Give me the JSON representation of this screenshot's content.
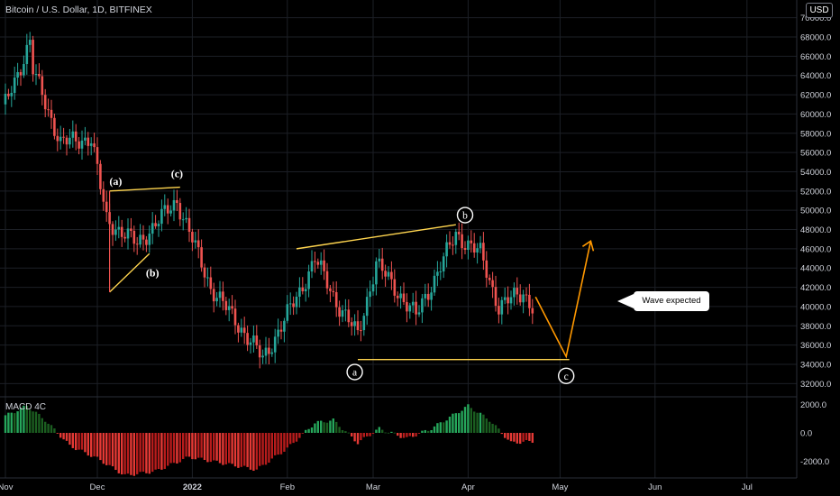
{
  "header": {
    "title": "Bitcoin / U.S. Dollar, 1D, BITFINEX"
  },
  "currency_button": "USD",
  "macd_label": "MACD 4C",
  "callout_text": "Wave expected",
  "colors": {
    "up": "#26a69a",
    "down": "#ef5350",
    "bull": "#4caf50",
    "bear": "#e53935",
    "wave_line": "#ffd54f",
    "projection": "#ff9800",
    "grid": "#1c1f26"
  },
  "chart_data": [
    {
      "type": "candlestick",
      "title": "Bitcoin / U.S. Dollar, 1D, BITFINEX",
      "x_ticks": [
        "Nov",
        "Dec",
        "2022",
        "Feb",
        "Mar",
        "Apr",
        "May",
        "Jun",
        "Jul"
      ],
      "y_ticks": [
        "70000.0",
        "68000.0",
        "66000.0",
        "64000.0",
        "62000.0",
        "60000.0",
        "58000.0",
        "56000.0",
        "54000.0",
        "52000.0",
        "50000.0",
        "48000.0",
        "46000.0",
        "44000.0",
        "42000.0",
        "40000.0",
        "38000.0",
        "36000.0",
        "34000.0",
        "32000.0"
      ],
      "ylim": [
        31000,
        71000
      ],
      "price_path": [
        {
          "date": "2021-11-01",
          "close": 61000
        },
        {
          "date": "2021-11-09",
          "close": 67500
        },
        {
          "date": "2021-11-10",
          "close": 64500
        },
        {
          "date": "2021-11-19",
          "close": 57000
        },
        {
          "date": "2021-11-29",
          "close": 57500
        },
        {
          "date": "2021-12-04",
          "close": 49000
        },
        {
          "date": "2021-12-14",
          "close": 46500
        },
        {
          "date": "2021-12-27",
          "close": 51000
        },
        {
          "date": "2022-01-07",
          "close": 42000
        },
        {
          "date": "2022-01-21",
          "close": 36000
        },
        {
          "date": "2022-01-24",
          "close": 34500
        },
        {
          "date": "2022-02-05",
          "close": 41500
        },
        {
          "date": "2022-02-10",
          "close": 45000
        },
        {
          "date": "2022-02-17",
          "close": 40500
        },
        {
          "date": "2022-02-24",
          "close": 37000
        },
        {
          "date": "2022-03-02",
          "close": 44500
        },
        {
          "date": "2022-03-15",
          "close": 39000
        },
        {
          "date": "2022-03-28",
          "close": 47500
        },
        {
          "date": "2022-04-05",
          "close": 45500
        },
        {
          "date": "2022-04-11",
          "close": 40000
        },
        {
          "date": "2022-04-19",
          "close": 41500
        },
        {
          "date": "2022-04-22",
          "close": 40000
        }
      ],
      "wave_labels": [
        {
          "text": "(a)",
          "date": "2021-12-07",
          "price": 53000
        },
        {
          "text": "(b)",
          "date": "2021-12-19",
          "price": 43500
        },
        {
          "text": "(c)",
          "date": "2021-12-27",
          "price": 53800
        },
        {
          "text": "b",
          "date": "2022-03-31",
          "price": 49500
        },
        {
          "text": "a",
          "date": "2022-02-23",
          "price": 33200
        },
        {
          "text": "c",
          "date": "2022-05-03",
          "price": 32800
        }
      ],
      "trendlines": [
        {
          "from": {
            "date": "2021-12-05",
            "price": 52000
          },
          "to": {
            "date": "2021-12-28",
            "price": 52400
          }
        },
        {
          "from": {
            "date": "2021-12-05",
            "price": 41500
          },
          "to": {
            "date": "2021-12-18",
            "price": 45500
          }
        },
        {
          "from": {
            "date": "2022-02-04",
            "price": 46000
          },
          "to": {
            "date": "2022-03-28",
            "price": 48500
          }
        },
        {
          "from": {
            "date": "2022-02-24",
            "price": 34500
          },
          "to": {
            "date": "2022-05-04",
            "price": 34500
          }
        }
      ],
      "projection": [
        {
          "date": "2022-04-23",
          "price": 41000
        },
        {
          "date": "2022-05-03",
          "price": 34800
        },
        {
          "date": "2022-05-11",
          "price": 46800
        }
      ]
    },
    {
      "type": "histogram",
      "title": "MACD 4C",
      "y_ticks": [
        "2000.0",
        "0.0",
        "-2000.0"
      ],
      "ylim": [
        -3000,
        2800
      ],
      "path": [
        {
          "date": "2021-11-01",
          "value": 1200
        },
        {
          "date": "2021-11-08",
          "value": 1900
        },
        {
          "date": "2021-11-14",
          "value": 900
        },
        {
          "date": "2021-11-22",
          "value": -900
        },
        {
          "date": "2021-12-01",
          "value": -1800
        },
        {
          "date": "2021-12-10",
          "value": -3000
        },
        {
          "date": "2021-12-20",
          "value": -2700
        },
        {
          "date": "2021-12-31",
          "value": -1700
        },
        {
          "date": "2022-01-10",
          "value": -2100
        },
        {
          "date": "2022-01-22",
          "value": -2600
        },
        {
          "date": "2022-02-01",
          "value": -1100
        },
        {
          "date": "2022-02-10",
          "value": 700
        },
        {
          "date": "2022-02-16",
          "value": 900
        },
        {
          "date": "2022-02-24",
          "value": -700
        },
        {
          "date": "2022-03-03",
          "value": 300
        },
        {
          "date": "2022-03-12",
          "value": -400
        },
        {
          "date": "2022-03-20",
          "value": 300
        },
        {
          "date": "2022-04-01",
          "value": 1900
        },
        {
          "date": "2022-04-08",
          "value": 900
        },
        {
          "date": "2022-04-15",
          "value": -700
        },
        {
          "date": "2022-04-22",
          "value": -600
        }
      ]
    }
  ]
}
